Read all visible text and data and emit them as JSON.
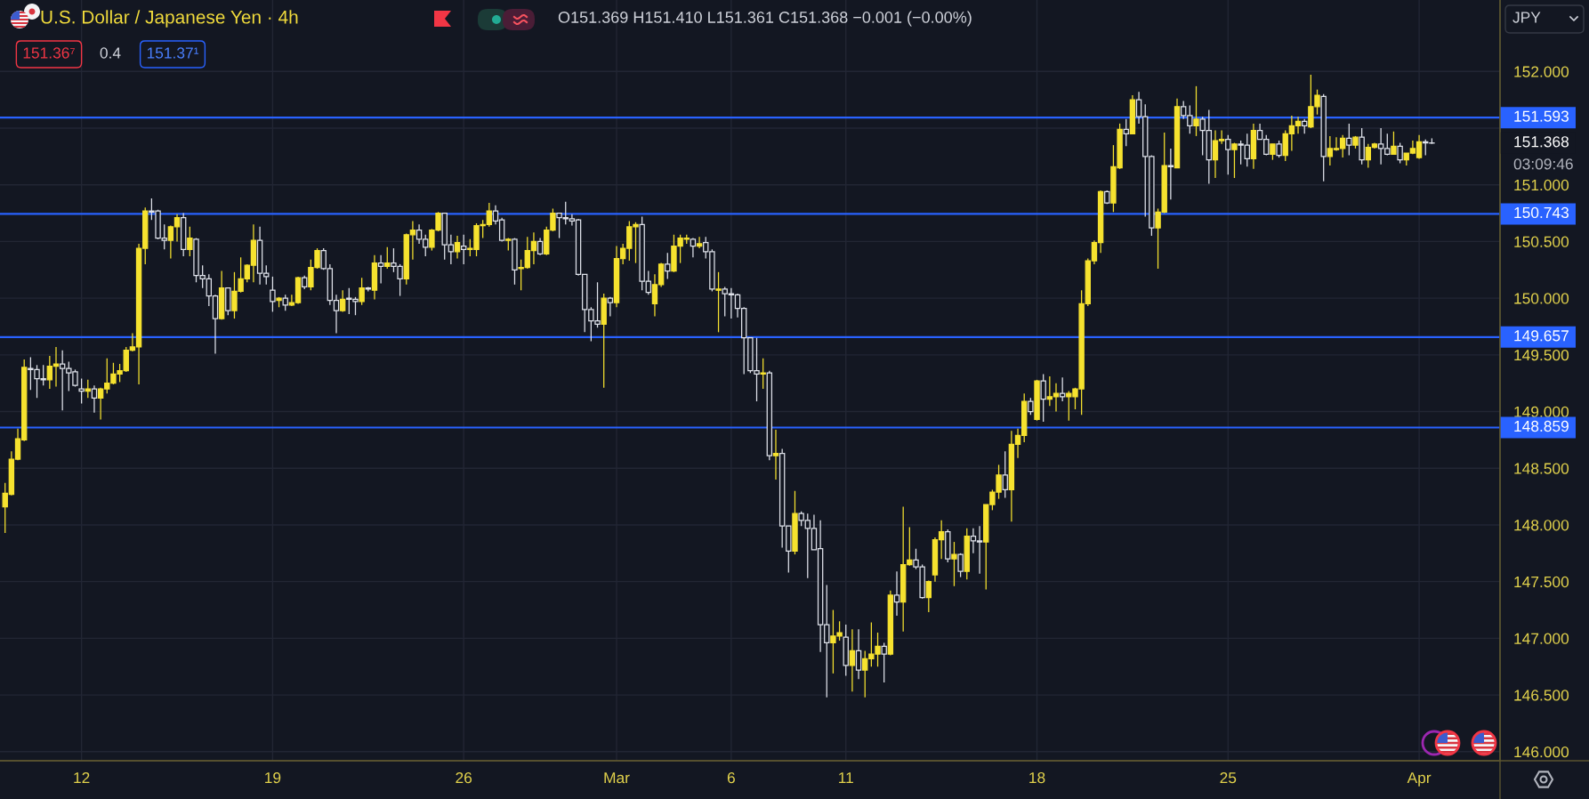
{
  "chart_data": {
    "type": "candlestick",
    "title": "U.S. Dollar / Japanese Yen · 4h",
    "categories": [
      null,
      null,
      null,
      null,
      null,
      null,
      null,
      null,
      null,
      null,
      null,
      null,
      "12",
      null,
      null,
      null,
      null,
      null,
      null,
      null,
      null,
      null,
      null,
      null,
      null,
      null,
      null,
      null,
      null,
      null,
      null,
      null,
      null,
      null,
      null,
      null,
      null,
      null,
      null,
      null,
      null,
      null,
      "19",
      null,
      null,
      null,
      null,
      null,
      null,
      null,
      null,
      null,
      null,
      null,
      null,
      null,
      null,
      null,
      null,
      null,
      null,
      null,
      null,
      null,
      null,
      null,
      null,
      null,
      null,
      null,
      null,
      null,
      "26",
      null,
      null,
      null,
      null,
      null,
      null,
      null,
      null,
      null,
      null,
      null,
      null,
      null,
      null,
      null,
      null,
      null,
      null,
      null,
      null,
      null,
      null,
      null,
      "Mar",
      null,
      null,
      null,
      null,
      null,
      null,
      null,
      null,
      null,
      null,
      null,
      null,
      null,
      null,
      null,
      null,
      null,
      "6",
      null,
      null,
      null,
      null,
      null,
      null,
      null,
      null,
      null,
      null,
      null,
      null,
      null,
      null,
      null,
      null,
      null,
      "11",
      null,
      null,
      null,
      null,
      null,
      null,
      null,
      null,
      null,
      null,
      null,
      null,
      null,
      null,
      null,
      null,
      null,
      null,
      null,
      null,
      null,
      null,
      null,
      null,
      null,
      null,
      null,
      null,
      null,
      "18",
      null,
      null,
      null,
      null,
      null,
      null,
      null,
      null,
      null,
      null,
      null,
      null,
      null,
      null,
      null,
      null,
      null,
      null,
      null,
      null,
      null,
      null,
      null,
      null,
      null,
      null,
      null,
      null,
      null,
      "25",
      null,
      null,
      null,
      null,
      null,
      null,
      null,
      null,
      null,
      null,
      null,
      null,
      null,
      null,
      null,
      null,
      null,
      null,
      null,
      null,
      null,
      null,
      null,
      null,
      null,
      null,
      null,
      null,
      null,
      "Apr",
      null,
      null
    ],
    "ohlc": [
      [
        148.16,
        148.37,
        147.93,
        148.28
      ],
      [
        148.27,
        148.65,
        148.26,
        148.58
      ],
      [
        148.58,
        148.85,
        148.57,
        148.76
      ],
      [
        148.75,
        149.46,
        148.74,
        149.39
      ],
      [
        149.38,
        149.48,
        149.19,
        149.37
      ],
      [
        149.37,
        149.41,
        149.12,
        149.29
      ],
      [
        149.29,
        149.41,
        149.23,
        149.28
      ],
      [
        149.28,
        149.49,
        149.2,
        149.4
      ],
      [
        149.4,
        149.57,
        149.22,
        149.42
      ],
      [
        149.42,
        149.54,
        149.01,
        149.38
      ],
      [
        149.38,
        149.44,
        149.18,
        149.34
      ],
      [
        149.35,
        149.37,
        149.22,
        149.23
      ],
      [
        149.2,
        149.29,
        149.07,
        149.18
      ],
      [
        149.18,
        149.28,
        149.12,
        149.2
      ],
      [
        149.2,
        149.23,
        148.99,
        149.12
      ],
      [
        149.12,
        149.21,
        148.93,
        149.2
      ],
      [
        149.2,
        149.47,
        149.16,
        149.25
      ],
      [
        149.25,
        149.43,
        149.24,
        149.33
      ],
      [
        149.33,
        149.42,
        149.26,
        149.36
      ],
      [
        149.36,
        149.57,
        149.35,
        149.54
      ],
      [
        149.54,
        149.69,
        149.53,
        149.57
      ],
      [
        149.57,
        150.48,
        149.24,
        150.44
      ],
      [
        150.44,
        150.8,
        150.3,
        150.77
      ],
      [
        150.77,
        150.88,
        150.69,
        150.76
      ],
      [
        150.77,
        150.78,
        150.52,
        150.53
      ],
      [
        150.53,
        150.65,
        150.43,
        150.51
      ],
      [
        150.51,
        150.64,
        150.35,
        150.63
      ],
      [
        150.63,
        150.74,
        150.5,
        150.71
      ],
      [
        150.71,
        150.75,
        150.37,
        150.43
      ],
      [
        150.43,
        150.63,
        150.37,
        150.53
      ],
      [
        150.52,
        150.53,
        150.14,
        150.2
      ],
      [
        150.2,
        150.29,
        150.09,
        150.17
      ],
      [
        150.17,
        150.21,
        149.93,
        150.02
      ],
      [
        150.02,
        150.03,
        149.51,
        149.82
      ],
      [
        149.82,
        150.24,
        149.81,
        150.09
      ],
      [
        150.09,
        150.09,
        149.85,
        149.89
      ],
      [
        149.89,
        150.23,
        149.82,
        150.06
      ],
      [
        150.06,
        150.36,
        150.05,
        150.17
      ],
      [
        150.17,
        150.3,
        150.14,
        150.29
      ],
      [
        150.29,
        150.65,
        150.14,
        150.51
      ],
      [
        150.51,
        150.63,
        150.12,
        150.22
      ],
      [
        150.22,
        150.29,
        150.12,
        150.19
      ],
      [
        150.07,
        150.19,
        149.88,
        149.97
      ],
      [
        149.98,
        150.01,
        149.92,
        150.0
      ],
      [
        150.0,
        150.03,
        149.89,
        149.94
      ],
      [
        149.94,
        150.03,
        149.93,
        149.96
      ],
      [
        149.96,
        150.19,
        149.95,
        150.18
      ],
      [
        150.18,
        150.2,
        150.08,
        150.1
      ],
      [
        150.1,
        150.34,
        150.07,
        150.27
      ],
      [
        150.27,
        150.44,
        150.26,
        150.42
      ],
      [
        150.42,
        150.44,
        150.25,
        150.26
      ],
      [
        150.26,
        150.3,
        149.94,
        149.98
      ],
      [
        149.98,
        150.03,
        149.69,
        149.89
      ],
      [
        149.89,
        150.07,
        149.88,
        149.99
      ],
      [
        150.0,
        150.09,
        149.86,
        149.99
      ],
      [
        149.99,
        150.01,
        149.85,
        149.97
      ],
      [
        149.97,
        150.18,
        149.94,
        150.09
      ],
      [
        150.09,
        150.1,
        150.06,
        150.08
      ],
      [
        150.07,
        150.38,
        149.99,
        150.31
      ],
      [
        150.31,
        150.38,
        150.13,
        150.28
      ],
      [
        150.28,
        150.45,
        150.26,
        150.31
      ],
      [
        150.31,
        150.44,
        150.23,
        150.28
      ],
      [
        150.28,
        150.3,
        150.02,
        150.17
      ],
      [
        150.17,
        150.57,
        150.12,
        150.56
      ],
      [
        150.56,
        150.68,
        150.34,
        150.6
      ],
      [
        150.6,
        150.65,
        150.48,
        150.52
      ],
      [
        150.52,
        150.56,
        150.37,
        150.45
      ],
      [
        150.45,
        150.61,
        150.42,
        150.6
      ],
      [
        150.6,
        150.76,
        150.59,
        150.75
      ],
      [
        150.75,
        150.75,
        150.34,
        150.47
      ],
      [
        150.47,
        150.56,
        150.3,
        150.41
      ],
      [
        150.41,
        150.55,
        150.35,
        150.49
      ],
      [
        150.46,
        150.56,
        150.3,
        150.43
      ],
      [
        150.43,
        150.52,
        150.37,
        150.44
      ],
      [
        150.43,
        150.66,
        150.37,
        150.64
      ],
      [
        150.64,
        150.69,
        150.53,
        150.65
      ],
      [
        150.65,
        150.84,
        150.63,
        150.77
      ],
      [
        150.77,
        150.82,
        150.65,
        150.68
      ],
      [
        150.69,
        150.71,
        150.5,
        150.51
      ],
      [
        150.51,
        150.53,
        150.42,
        150.52
      ],
      [
        150.52,
        150.53,
        150.12,
        150.25
      ],
      [
        150.26,
        150.34,
        150.07,
        150.27
      ],
      [
        150.27,
        150.54,
        150.26,
        150.42
      ],
      [
        150.42,
        150.58,
        150.3,
        150.5
      ],
      [
        150.5,
        150.53,
        150.38,
        150.39
      ],
      [
        150.39,
        150.63,
        150.38,
        150.6
      ],
      [
        150.6,
        150.79,
        150.59,
        150.75
      ],
      [
        150.75,
        150.75,
        150.53,
        150.71
      ],
      [
        150.71,
        150.85,
        150.65,
        150.7
      ],
      [
        150.7,
        150.74,
        150.64,
        150.68
      ],
      [
        150.69,
        150.7,
        150.2,
        150.21
      ],
      [
        150.21,
        150.21,
        149.7,
        149.9
      ],
      [
        149.9,
        149.92,
        149.62,
        149.8
      ],
      [
        149.8,
        150.14,
        149.74,
        149.77
      ],
      [
        149.77,
        150.04,
        149.21,
        150.0
      ],
      [
        150.0,
        150.01,
        149.84,
        149.96
      ],
      [
        149.96,
        150.46,
        149.92,
        150.35
      ],
      [
        150.35,
        150.48,
        150.3,
        150.44
      ],
      [
        150.44,
        150.68,
        150.33,
        150.63
      ],
      [
        150.63,
        150.67,
        150.31,
        150.65
      ],
      [
        150.65,
        150.72,
        150.07,
        150.15
      ],
      [
        150.15,
        150.24,
        150.03,
        150.05
      ],
      [
        149.95,
        150.21,
        149.84,
        150.12
      ],
      [
        150.12,
        150.31,
        150.1,
        150.3
      ],
      [
        150.3,
        150.4,
        150.17,
        150.24
      ],
      [
        150.24,
        150.56,
        150.23,
        150.46
      ],
      [
        150.46,
        150.56,
        150.31,
        150.53
      ],
      [
        150.52,
        150.56,
        150.48,
        150.53
      ],
      [
        150.52,
        150.53,
        150.36,
        150.46
      ],
      [
        150.46,
        150.54,
        150.44,
        150.48
      ],
      [
        150.49,
        150.54,
        150.35,
        150.41
      ],
      [
        150.41,
        150.43,
        150.06,
        150.08
      ],
      [
        150.07,
        150.23,
        149.7,
        150.08
      ],
      [
        150.08,
        150.1,
        149.84,
        150.04
      ],
      [
        150.04,
        150.09,
        149.82,
        150.03
      ],
      [
        150.03,
        150.04,
        149.83,
        149.91
      ],
      [
        149.91,
        149.92,
        149.33,
        149.65
      ],
      [
        149.65,
        149.65,
        149.34,
        149.36
      ],
      [
        149.36,
        149.65,
        149.09,
        149.33
      ],
      [
        149.33,
        149.47,
        149.2,
        149.34
      ],
      [
        149.34,
        149.36,
        148.57,
        148.61
      ],
      [
        148.61,
        148.84,
        148.4,
        148.63
      ],
      [
        148.63,
        148.67,
        147.8,
        147.99
      ],
      [
        147.99,
        147.99,
        147.58,
        147.77
      ],
      [
        147.77,
        148.3,
        147.74,
        148.1
      ],
      [
        148.1,
        148.12,
        147.99,
        148.04
      ],
      [
        148.04,
        148.1,
        147.53,
        147.97
      ],
      [
        147.97,
        148.09,
        147.78,
        147.78
      ],
      [
        147.79,
        148.04,
        146.88,
        147.12
      ],
      [
        147.12,
        147.47,
        146.48,
        146.96
      ],
      [
        146.96,
        147.25,
        146.69,
        147.02
      ],
      [
        147.02,
        147.15,
        146.98,
        147.05
      ],
      [
        147.01,
        147.12,
        146.67,
        146.76
      ],
      [
        146.76,
        147.08,
        146.53,
        146.89
      ],
      [
        146.89,
        147.08,
        146.64,
        146.72
      ],
      [
        146.72,
        146.89,
        146.48,
        146.82
      ],
      [
        146.82,
        147.14,
        146.75,
        146.86
      ],
      [
        146.86,
        147.05,
        146.75,
        146.93
      ],
      [
        146.93,
        146.96,
        146.61,
        146.86
      ],
      [
        146.86,
        147.42,
        146.85,
        147.38
      ],
      [
        147.38,
        147.59,
        147.2,
        147.32
      ],
      [
        147.32,
        148.16,
        147.06,
        147.65
      ],
      [
        147.65,
        147.98,
        147.64,
        147.69
      ],
      [
        147.69,
        147.79,
        147.61,
        147.63
      ],
      [
        147.63,
        147.65,
        147.35,
        147.36
      ],
      [
        147.36,
        147.51,
        147.23,
        147.5
      ],
      [
        147.56,
        147.89,
        147.5,
        147.87
      ],
      [
        147.87,
        148.04,
        147.7,
        147.94
      ],
      [
        147.94,
        147.96,
        147.67,
        147.7
      ],
      [
        147.7,
        147.85,
        147.46,
        147.74
      ],
      [
        147.74,
        147.75,
        147.54,
        147.59
      ],
      [
        147.59,
        147.97,
        147.52,
        147.9
      ],
      [
        147.9,
        147.97,
        147.75,
        147.86
      ],
      [
        147.86,
        147.99,
        147.57,
        147.85
      ],
      [
        147.85,
        148.18,
        147.43,
        148.18
      ],
      [
        148.18,
        148.31,
        148.13,
        148.29
      ],
      [
        148.29,
        148.53,
        148.23,
        148.44
      ],
      [
        148.44,
        148.65,
        148.24,
        148.31
      ],
      [
        148.31,
        148.83,
        148.03,
        148.71
      ],
      [
        148.71,
        148.85,
        148.59,
        148.79
      ],
      [
        148.79,
        149.16,
        148.73,
        149.09
      ],
      [
        149.09,
        149.12,
        148.97,
        149.0
      ],
      [
        148.93,
        149.28,
        148.92,
        149.27
      ],
      [
        149.27,
        149.33,
        148.91,
        149.11
      ],
      [
        149.11,
        149.31,
        149.05,
        149.13
      ],
      [
        149.13,
        149.25,
        149.0,
        149.16
      ],
      [
        149.16,
        149.3,
        149.09,
        149.13
      ],
      [
        149.13,
        149.18,
        148.92,
        149.16
      ],
      [
        149.13,
        149.21,
        149.02,
        149.2
      ],
      [
        149.2,
        150.07,
        148.97,
        149.95
      ],
      [
        149.95,
        150.35,
        149.93,
        150.33
      ],
      [
        150.33,
        150.51,
        150.3,
        150.49
      ],
      [
        150.49,
        150.95,
        150.4,
        150.94
      ],
      [
        150.94,
        150.95,
        150.83,
        150.84
      ],
      [
        150.84,
        151.35,
        150.76,
        151.16
      ],
      [
        151.15,
        151.54,
        151.14,
        151.49
      ],
      [
        151.49,
        151.58,
        151.34,
        151.45
      ],
      [
        151.45,
        151.79,
        151.45,
        151.75
      ],
      [
        151.75,
        151.82,
        151.54,
        151.6
      ],
      [
        151.6,
        151.71,
        150.72,
        151.25
      ],
      [
        151.25,
        151.26,
        150.55,
        150.62
      ],
      [
        150.62,
        150.79,
        150.26,
        150.76
      ],
      [
        150.76,
        151.46,
        150.75,
        151.17
      ],
      [
        151.17,
        151.32,
        150.87,
        151.16
      ],
      [
        151.15,
        151.76,
        151.15,
        151.69
      ],
      [
        151.69,
        151.74,
        151.58,
        151.61
      ],
      [
        151.61,
        151.7,
        151.45,
        151.52
      ],
      [
        151.52,
        151.87,
        151.43,
        151.58
      ],
      [
        151.58,
        151.6,
        151.26,
        151.48
      ],
      [
        151.48,
        151.66,
        151.01,
        151.22
      ],
      [
        151.22,
        151.48,
        151.06,
        151.39
      ],
      [
        151.39,
        151.48,
        151.36,
        151.4
      ],
      [
        151.4,
        151.44,
        151.09,
        151.31
      ],
      [
        151.31,
        151.37,
        151.06,
        151.36
      ],
      [
        151.36,
        151.39,
        151.18,
        151.35
      ],
      [
        151.35,
        151.45,
        151.16,
        151.23
      ],
      [
        151.23,
        151.54,
        151.14,
        151.48
      ],
      [
        151.48,
        151.54,
        151.4,
        151.4
      ],
      [
        151.4,
        151.44,
        151.26,
        151.27
      ],
      [
        151.27,
        151.36,
        151.22,
        151.36
      ],
      [
        151.36,
        151.39,
        151.24,
        151.26
      ],
      [
        151.26,
        151.48,
        151.21,
        151.45
      ],
      [
        151.45,
        151.61,
        151.3,
        151.52
      ],
      [
        151.52,
        151.6,
        151.45,
        151.56
      ],
      [
        151.56,
        151.58,
        151.45,
        151.52
      ],
      [
        151.51,
        151.97,
        151.5,
        151.69
      ],
      [
        151.69,
        151.84,
        151.62,
        151.79
      ],
      [
        151.78,
        151.8,
        151.03,
        151.25
      ],
      [
        151.25,
        151.43,
        151.17,
        151.32
      ],
      [
        151.31,
        151.42,
        151.3,
        151.32
      ],
      [
        151.32,
        151.44,
        151.24,
        151.41
      ],
      [
        151.41,
        151.54,
        151.26,
        151.35
      ],
      [
        151.35,
        151.43,
        151.32,
        151.42
      ],
      [
        151.42,
        151.5,
        151.18,
        151.22
      ],
      [
        151.22,
        151.36,
        151.15,
        151.33
      ],
      [
        151.33,
        151.37,
        151.32,
        151.36
      ],
      [
        151.36,
        151.5,
        151.18,
        151.32
      ],
      [
        151.32,
        151.45,
        151.26,
        151.27
      ],
      [
        151.27,
        151.47,
        151.27,
        151.34
      ],
      [
        151.34,
        151.37,
        151.19,
        151.22
      ],
      [
        151.22,
        151.28,
        151.17,
        151.28
      ],
      [
        151.28,
        151.39,
        151.27,
        151.32
      ],
      [
        151.24,
        151.44,
        151.23,
        151.38
      ],
      [
        151.38,
        151.4,
        151.26,
        151.37
      ],
      [
        151.369,
        151.41,
        151.361,
        151.368
      ]
    ],
    "colors": [
      "#f6e22f",
      "#f6e22f",
      "#f6e22f",
      "#f6e22f",
      "#e0e3eb",
      "#e0e3eb",
      "#e0e3eb",
      "#f6e22f",
      "#f6e22f",
      "#e0e3eb",
      "#e0e3eb",
      "#e0e3eb",
      "#e0e3eb",
      "#f6e22f",
      "#e0e3eb",
      "#f6e22f",
      "#f6e22f",
      "#f6e22f",
      "#f6e22f",
      "#f6e22f",
      "#f6e22f",
      "#f6e22f",
      "#f6e22f",
      "#e0e3eb",
      "#e0e3eb",
      "#e0e3eb",
      "#f6e22f",
      "#f6e22f",
      "#e0e3eb",
      "#f6e22f",
      "#e0e3eb",
      "#e0e3eb",
      "#e0e3eb",
      "#e0e3eb",
      "#f6e22f",
      "#e0e3eb",
      "#f6e22f",
      "#f6e22f",
      "#f6e22f",
      "#f6e22f",
      "#e0e3eb",
      "#e0e3eb",
      "#e0e3eb",
      "#f6e22f",
      "#e0e3eb",
      "#f6e22f",
      "#f6e22f",
      "#e0e3eb",
      "#f6e22f",
      "#f6e22f",
      "#e0e3eb",
      "#e0e3eb",
      "#e0e3eb",
      "#f6e22f",
      "#e0e3eb",
      "#e0e3eb",
      "#f6e22f",
      "#e0e3eb",
      "#f6e22f",
      "#e0e3eb",
      "#f6e22f",
      "#e0e3eb",
      "#e0e3eb",
      "#f6e22f",
      "#f6e22f",
      "#e0e3eb",
      "#e0e3eb",
      "#f6e22f",
      "#f6e22f",
      "#e0e3eb",
      "#e0e3eb",
      "#f6e22f",
      "#e0e3eb",
      "#f6e22f",
      "#f6e22f",
      "#f6e22f",
      "#f6e22f",
      "#e0e3eb",
      "#e0e3eb",
      "#f6e22f",
      "#e0e3eb",
      "#f6e22f",
      "#f6e22f",
      "#f6e22f",
      "#e0e3eb",
      "#f6e22f",
      "#f6e22f",
      "#e0e3eb",
      "#e0e3eb",
      "#e0e3eb",
      "#e0e3eb",
      "#e0e3eb",
      "#e0e3eb",
      "#e0e3eb",
      "#f6e22f",
      "#e0e3eb",
      "#f6e22f",
      "#f6e22f",
      "#f6e22f",
      "#f6e22f",
      "#e0e3eb",
      "#e0e3eb",
      "#f6e22f",
      "#f6e22f",
      "#e0e3eb",
      "#f6e22f",
      "#f6e22f",
      "#f6e22f",
      "#e0e3eb",
      "#f6e22f",
      "#e0e3eb",
      "#e0e3eb",
      "#f6e22f",
      "#e0e3eb",
      "#e0e3eb",
      "#e0e3eb",
      "#e0e3eb",
      "#e0e3eb",
      "#e0e3eb",
      "#f6e22f",
      "#e0e3eb",
      "#f6e22f",
      "#e0e3eb",
      "#e0e3eb",
      "#f6e22f",
      "#e0e3eb",
      "#e0e3eb",
      "#e0e3eb",
      "#e0e3eb",
      "#e0e3eb",
      "#f6e22f",
      "#f6e22f",
      "#e0e3eb",
      "#f6e22f",
      "#e0e3eb",
      "#f6e22f",
      "#f6e22f",
      "#f6e22f",
      "#e0e3eb",
      "#f6e22f",
      "#e0e3eb",
      "#f6e22f",
      "#f6e22f",
      "#e0e3eb",
      "#e0e3eb",
      "#f6e22f",
      "#f6e22f",
      "#f6e22f",
      "#e0e3eb",
      "#f6e22f",
      "#e0e3eb",
      "#f6e22f",
      "#e0e3eb",
      "#e0e3eb",
      "#f6e22f",
      "#f6e22f",
      "#f6e22f",
      "#e0e3eb",
      "#f6e22f",
      "#f6e22f",
      "#f6e22f",
      "#e0e3eb",
      "#f6e22f",
      "#e0e3eb",
      "#f6e22f",
      "#f6e22f",
      "#e0e3eb",
      "#f6e22f",
      "#f6e22f",
      "#f6e22f",
      "#f6e22f",
      "#f6e22f",
      "#f6e22f",
      "#e0e3eb",
      "#f6e22f",
      "#f6e22f",
      "#e0e3eb",
      "#f6e22f",
      "#e0e3eb",
      "#e0e3eb",
      "#e0e3eb",
      "#f6e22f",
      "#f6e22f",
      "#e0e3eb",
      "#f6e22f",
      "#e0e3eb",
      "#e0e3eb",
      "#f6e22f",
      "#e0e3eb",
      "#e0e3eb",
      "#f6e22f",
      "#f6e22f",
      "#e0e3eb",
      "#f6e22f",
      "#e0e3eb",
      "#e0e3eb",
      "#f6e22f",
      "#e0e3eb",
      "#e0e3eb",
      "#f6e22f",
      "#e0e3eb",
      "#f6e22f",
      "#f6e22f",
      "#f6e22f",
      "#e0e3eb",
      "#f6e22f",
      "#f6e22f",
      "#e0e3eb",
      "#f6e22f",
      "#f6e22f",
      "#f6e22f",
      "#e0e3eb",
      "#f6e22f",
      "#e0e3eb",
      "#f6e22f",
      "#f6e22f",
      "#e0e3eb",
      "#e0e3eb",
      "#f6e22f",
      "#e0e3eb",
      "#f6e22f",
      "#f6e22f",
      "#f6e22f",
      "#e0e3eb",
      "#e0e3eb"
    ],
    "ylim": [
      145.92,
      152.63
    ],
    "yticks": [
      {
        "value": 146.0,
        "label": "146.000"
      },
      {
        "value": 146.5,
        "label": "146.500"
      },
      {
        "value": 147.0,
        "label": "147.000"
      },
      {
        "value": 147.5,
        "label": "147.500"
      },
      {
        "value": 148.0,
        "label": "148.000"
      },
      {
        "value": 148.5,
        "label": "148.500"
      },
      {
        "value": 149.0,
        "label": "149.000"
      },
      {
        "value": 149.5,
        "label": "149.500"
      },
      {
        "value": 150.0,
        "label": "150.000"
      },
      {
        "value": 150.5,
        "label": "150.500"
      },
      {
        "value": 151.0,
        "label": "151.000"
      },
      {
        "value": 151.5,
        "label": null
      },
      {
        "value": 152.0,
        "label": "152.000"
      }
    ],
    "grid": true,
    "ref_lines": [
      {
        "axis": "y",
        "value": 151.593,
        "label": "151.593",
        "color": "#2962ff"
      },
      {
        "axis": "y",
        "value": 150.743,
        "label": "150.743",
        "color": "#2962ff"
      },
      {
        "axis": "y",
        "value": 149.657,
        "label": "149.657",
        "color": "#2962ff"
      },
      {
        "axis": "y",
        "value": 148.859,
        "label": "148.859",
        "color": "#2962ff"
      }
    ],
    "annotations": [
      "O151.369 H151.410 L151.361 C151.368 −0.001 (−0.00%)",
      "151.36⁷",
      "0.4",
      "151.37¹",
      "JPY",
      "151.368",
      "03:09:46"
    ]
  }
}
